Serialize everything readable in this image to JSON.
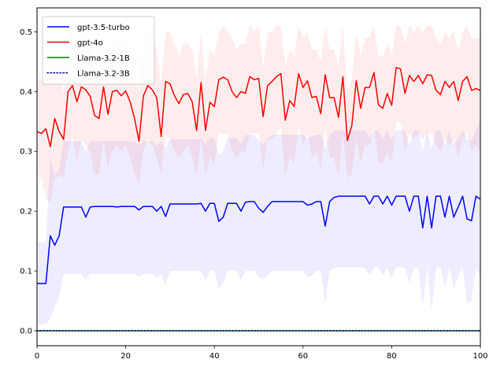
{
  "chart_data": {
    "type": "line",
    "title": "",
    "xlabel": "",
    "ylabel": "",
    "xlim": [
      0,
      100
    ],
    "ylim": [
      -0.025,
      0.54
    ],
    "x_ticks": [
      0,
      20,
      40,
      60,
      80,
      100
    ],
    "y_ticks": [
      0.0,
      0.1,
      0.2,
      0.3,
      0.4,
      0.5
    ],
    "x_tick_labels": [
      "0",
      "20",
      "40",
      "60",
      "80",
      "100"
    ],
    "y_tick_labels": [
      "0.0",
      "0.1",
      "0.2",
      "0.3",
      "0.4",
      "0.5"
    ],
    "grid": false,
    "legend_position": "top-left",
    "series": [
      {
        "name": "gpt-3.5-turbo",
        "color": "#0000ff",
        "linestyle": "solid",
        "x": [
          0,
          1,
          2,
          3,
          4,
          5,
          6,
          7,
          8,
          9,
          10,
          11,
          12,
          13,
          14,
          15,
          16,
          17,
          18,
          19,
          20,
          21,
          22,
          23,
          24,
          25,
          26,
          27,
          28,
          29,
          30,
          31,
          32,
          33,
          34,
          35,
          36,
          37,
          38,
          39,
          40,
          41,
          42,
          43,
          44,
          45,
          46,
          47,
          48,
          49,
          50,
          51,
          52,
          53,
          54,
          55,
          56,
          57,
          58,
          59,
          60,
          61,
          62,
          63,
          64,
          65,
          66,
          67,
          68,
          69,
          70,
          71,
          72,
          73,
          74,
          75,
          76,
          77,
          78,
          79,
          80,
          81,
          82,
          83,
          84,
          85,
          86,
          87,
          88,
          89,
          90,
          91,
          92,
          93,
          94,
          95,
          96,
          97,
          98,
          99,
          100
        ],
        "y": [
          0.079,
          0.079,
          0.079,
          0.159,
          0.143,
          0.159,
          0.207,
          0.207,
          0.207,
          0.207,
          0.207,
          0.19,
          0.207,
          0.208,
          0.208,
          0.208,
          0.208,
          0.208,
          0.207,
          0.208,
          0.208,
          0.208,
          0.208,
          0.202,
          0.208,
          0.208,
          0.208,
          0.2,
          0.208,
          0.191,
          0.212,
          0.212,
          0.212,
          0.212,
          0.212,
          0.212,
          0.212,
          0.213,
          0.2,
          0.213,
          0.213,
          0.183,
          0.19,
          0.213,
          0.213,
          0.213,
          0.2,
          0.215,
          0.216,
          0.216,
          0.205,
          0.198,
          0.208,
          0.216,
          0.216,
          0.216,
          0.216,
          0.216,
          0.216,
          0.216,
          0.216,
          0.21,
          0.212,
          0.216,
          0.216,
          0.175,
          0.216,
          0.223,
          0.225,
          0.225,
          0.225,
          0.225,
          0.225,
          0.225,
          0.225,
          0.212,
          0.225,
          0.225,
          0.212,
          0.225,
          0.21,
          0.225,
          0.225,
          0.225,
          0.2,
          0.225,
          0.225,
          0.172,
          0.225,
          0.172,
          0.225,
          0.225,
          0.19,
          0.225,
          0.19,
          0.207,
          0.225,
          0.187,
          0.184,
          0.225,
          0.22
        ],
        "band_lower": [
          0.011,
          0.011,
          0.011,
          0.02,
          0.04,
          0.058,
          0.095,
          0.095,
          0.095,
          0.095,
          0.095,
          0.085,
          0.095,
          0.095,
          0.095,
          0.095,
          0.095,
          0.095,
          0.095,
          0.095,
          0.095,
          0.095,
          0.095,
          0.09,
          0.095,
          0.095,
          0.095,
          0.088,
          0.095,
          0.075,
          0.1,
          0.1,
          0.1,
          0.1,
          0.1,
          0.1,
          0.1,
          0.1,
          0.085,
          0.1,
          0.1,
          0.07,
          0.08,
          0.1,
          0.1,
          0.1,
          0.085,
          0.1,
          0.1,
          0.1,
          0.09,
          0.085,
          0.092,
          0.1,
          0.1,
          0.1,
          0.1,
          0.1,
          0.1,
          0.1,
          0.1,
          0.09,
          0.092,
          0.1,
          0.1,
          0.045,
          0.1,
          0.105,
          0.106,
          0.106,
          0.106,
          0.106,
          0.106,
          0.106,
          0.106,
          0.092,
          0.106,
          0.106,
          0.092,
          0.106,
          0.088,
          0.106,
          0.106,
          0.106,
          0.08,
          0.106,
          0.106,
          0.04,
          0.106,
          0.035,
          0.106,
          0.106,
          0.07,
          0.106,
          0.07,
          0.09,
          0.106,
          0.045,
          0.05,
          0.106,
          0.09
        ],
        "band_upper": [
          0.148,
          0.148,
          0.148,
          0.29,
          0.26,
          0.27,
          0.317,
          0.317,
          0.317,
          0.317,
          0.317,
          0.3,
          0.317,
          0.317,
          0.317,
          0.317,
          0.317,
          0.317,
          0.317,
          0.317,
          0.317,
          0.317,
          0.317,
          0.31,
          0.317,
          0.317,
          0.317,
          0.31,
          0.317,
          0.305,
          0.32,
          0.32,
          0.32,
          0.32,
          0.32,
          0.32,
          0.32,
          0.322,
          0.312,
          0.322,
          0.322,
          0.295,
          0.302,
          0.322,
          0.322,
          0.322,
          0.312,
          0.327,
          0.328,
          0.328,
          0.318,
          0.312,
          0.322,
          0.328,
          0.328,
          0.328,
          0.328,
          0.328,
          0.328,
          0.328,
          0.328,
          0.322,
          0.325,
          0.328,
          0.328,
          0.305,
          0.328,
          0.333,
          0.335,
          0.335,
          0.335,
          0.335,
          0.335,
          0.335,
          0.335,
          0.322,
          0.335,
          0.335,
          0.322,
          0.335,
          0.32,
          0.335,
          0.335,
          0.335,
          0.31,
          0.335,
          0.335,
          0.3,
          0.335,
          0.305,
          0.335,
          0.335,
          0.31,
          0.335,
          0.312,
          0.322,
          0.335,
          0.32,
          0.318,
          0.335,
          0.355
        ]
      },
      {
        "name": "gpt-4o",
        "color": "#ff0000",
        "linestyle": "solid",
        "x": [
          0,
          1,
          2,
          3,
          4,
          5,
          6,
          7,
          8,
          9,
          10,
          11,
          12,
          13,
          14,
          15,
          16,
          17,
          18,
          19,
          20,
          21,
          22,
          23,
          24,
          25,
          26,
          27,
          28,
          29,
          30,
          31,
          32,
          33,
          34,
          35,
          36,
          37,
          38,
          39,
          40,
          41,
          42,
          43,
          44,
          45,
          46,
          47,
          48,
          49,
          50,
          51,
          52,
          53,
          54,
          55,
          56,
          57,
          58,
          59,
          60,
          61,
          62,
          63,
          64,
          65,
          66,
          67,
          68,
          69,
          70,
          71,
          72,
          73,
          74,
          75,
          76,
          77,
          78,
          79,
          80,
          81,
          82,
          83,
          84,
          85,
          86,
          87,
          88,
          89,
          90,
          91,
          92,
          93,
          94,
          95,
          96,
          97,
          98,
          99,
          100
        ],
        "y": [
          0.333,
          0.33,
          0.338,
          0.308,
          0.355,
          0.333,
          0.32,
          0.4,
          0.41,
          0.383,
          0.408,
          0.403,
          0.392,
          0.36,
          0.355,
          0.408,
          0.362,
          0.4,
          0.402,
          0.393,
          0.401,
          0.383,
          0.355,
          0.317,
          0.393,
          0.41,
          0.403,
          0.39,
          0.325,
          0.417,
          0.413,
          0.393,
          0.38,
          0.395,
          0.397,
          0.383,
          0.335,
          0.415,
          0.335,
          0.382,
          0.375,
          0.42,
          0.424,
          0.42,
          0.4,
          0.39,
          0.4,
          0.397,
          0.425,
          0.42,
          0.422,
          0.358,
          0.41,
          0.417,
          0.425,
          0.43,
          0.352,
          0.385,
          0.375,
          0.43,
          0.407,
          0.418,
          0.39,
          0.392,
          0.363,
          0.428,
          0.39,
          0.39,
          0.357,
          0.425,
          0.318,
          0.343,
          0.418,
          0.372,
          0.407,
          0.407,
          0.432,
          0.378,
          0.372,
          0.397,
          0.377,
          0.44,
          0.438,
          0.397,
          0.427,
          0.417,
          0.427,
          0.413,
          0.428,
          0.427,
          0.402,
          0.395,
          0.417,
          0.407,
          0.417,
          0.385,
          0.417,
          0.425,
          0.402,
          0.405,
          0.402
        ],
        "band_lower": [
          0.26,
          0.255,
          0.22,
          0.215,
          0.255,
          0.26,
          0.255,
          0.3,
          0.325,
          0.28,
          0.32,
          0.31,
          0.3,
          0.262,
          0.262,
          0.318,
          0.27,
          0.3,
          0.31,
          0.3,
          0.31,
          0.29,
          0.262,
          0.245,
          0.3,
          0.32,
          0.31,
          0.29,
          0.26,
          0.33,
          0.32,
          0.3,
          0.29,
          0.3,
          0.31,
          0.29,
          0.26,
          0.32,
          0.26,
          0.29,
          0.28,
          0.33,
          0.33,
          0.33,
          0.3,
          0.29,
          0.3,
          0.3,
          0.33,
          0.33,
          0.33,
          0.27,
          0.32,
          0.32,
          0.33,
          0.34,
          0.26,
          0.29,
          0.28,
          0.34,
          0.31,
          0.33,
          0.29,
          0.3,
          0.27,
          0.34,
          0.29,
          0.29,
          0.26,
          0.33,
          0.255,
          0.262,
          0.32,
          0.28,
          0.31,
          0.31,
          0.34,
          0.28,
          0.28,
          0.3,
          0.28,
          0.35,
          0.35,
          0.3,
          0.33,
          0.32,
          0.33,
          0.32,
          0.33,
          0.33,
          0.31,
          0.3,
          0.32,
          0.31,
          0.32,
          0.29,
          0.32,
          0.33,
          0.3,
          0.31,
          0.3
        ],
        "band_upper": [
          0.42,
          0.42,
          0.43,
          0.43,
          0.45,
          0.42,
          0.4,
          0.5,
          0.5,
          0.47,
          0.49,
          0.49,
          0.48,
          0.45,
          0.44,
          0.49,
          0.45,
          0.49,
          0.49,
          0.48,
          0.49,
          0.47,
          0.44,
          0.4,
          0.48,
          0.5,
          0.49,
          0.47,
          0.41,
          0.5,
          0.5,
          0.48,
          0.46,
          0.48,
          0.48,
          0.47,
          0.42,
          0.5,
          0.42,
          0.47,
          0.46,
          0.5,
          0.51,
          0.5,
          0.49,
          0.47,
          0.48,
          0.48,
          0.51,
          0.5,
          0.51,
          0.44,
          0.5,
          0.5,
          0.51,
          0.51,
          0.44,
          0.47,
          0.46,
          0.51,
          0.49,
          0.5,
          0.47,
          0.47,
          0.45,
          0.51,
          0.47,
          0.47,
          0.44,
          0.51,
          0.4,
          0.42,
          0.5,
          0.46,
          0.49,
          0.49,
          0.51,
          0.46,
          0.46,
          0.48,
          0.46,
          0.51,
          0.51,
          0.48,
          0.51,
          0.5,
          0.51,
          0.5,
          0.51,
          0.51,
          0.49,
          0.48,
          0.5,
          0.49,
          0.5,
          0.47,
          0.5,
          0.51,
          0.49,
          0.49,
          0.49
        ]
      },
      {
        "name": "Llama-3.2-1B",
        "color": "#008000",
        "linestyle": "solid",
        "x": [
          0,
          100
        ],
        "y": [
          0.0,
          0.0
        ]
      },
      {
        "name": "Llama-3.2-3B",
        "color": "#00008b",
        "linestyle": "dotted",
        "x": [
          0,
          100
        ],
        "y": [
          0.0,
          0.0
        ]
      }
    ]
  }
}
